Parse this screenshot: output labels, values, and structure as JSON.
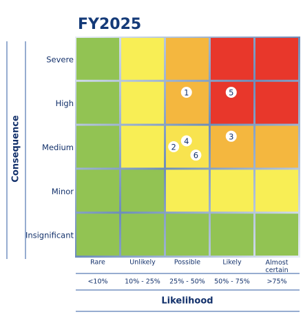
{
  "title": "FY2025",
  "y_axis_label": "Consequence",
  "x_axis_label": "Likelihood",
  "rows": [
    "Severe",
    "High",
    "Medium",
    "Minor",
    "Insignificant"
  ],
  "columns": [
    {
      "label": "Rare",
      "range": "<10%"
    },
    {
      "label": "Unlikely",
      "range": "10% - 25%"
    },
    {
      "label": "Possible",
      "range": "25% - 50%"
    },
    {
      "label": "Likely",
      "range": "50% - 75%"
    },
    {
      "label": "Almost certain",
      "range": ">75%"
    }
  ],
  "cells": [
    [
      {
        "color": "#92c353",
        "markers": []
      },
      {
        "color": "#f8ee55",
        "markers": []
      },
      {
        "color": "#f4b73f",
        "markers": []
      },
      {
        "color": "#e8372b",
        "markers": []
      },
      {
        "color": "#e8372b",
        "markers": []
      }
    ],
    [
      {
        "color": "#92c353",
        "markers": []
      },
      {
        "color": "#f8ee55",
        "markers": []
      },
      {
        "color": "#f4b73f",
        "markers": [
          "1"
        ]
      },
      {
        "color": "#e8372b",
        "markers": [
          "5"
        ]
      },
      {
        "color": "#e8372b",
        "markers": []
      }
    ],
    [
      {
        "color": "#92c353",
        "markers": []
      },
      {
        "color": "#f8ee55",
        "markers": []
      },
      {
        "color": "#f8e34f",
        "markers": [
          "4",
          "2",
          "6"
        ]
      },
      {
        "color": "#f4b73f",
        "markers": [
          "3"
        ]
      },
      {
        "color": "#f4b73f",
        "markers": []
      }
    ],
    [
      {
        "color": "#92c353",
        "markers": []
      },
      {
        "color": "#92c353",
        "markers": []
      },
      {
        "color": "#f8ee55",
        "markers": []
      },
      {
        "color": "#f8ee55",
        "markers": []
      },
      {
        "color": "#f8ee55",
        "markers": []
      }
    ],
    [
      {
        "color": "#92c353",
        "markers": []
      },
      {
        "color": "#92c353",
        "markers": []
      },
      {
        "color": "#92c353",
        "markers": []
      },
      {
        "color": "#92c353",
        "markers": []
      },
      {
        "color": "#92c353",
        "markers": []
      }
    ]
  ]
}
